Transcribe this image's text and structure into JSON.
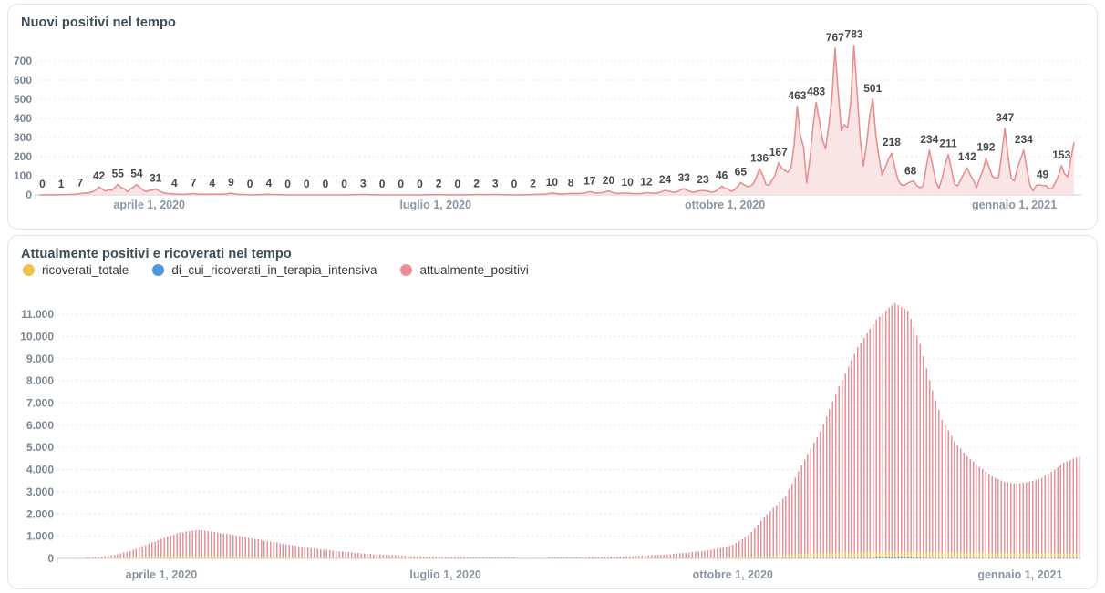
{
  "colors": {
    "card_border": "#e4e4e4",
    "grid": "#e8e8ec",
    "axis": "#c8ccd0",
    "y_tick_text": "#7b8793",
    "x_tick_text": "#8b96a1",
    "data_label_text": "#47484a",
    "title_text": "#3e4c56",
    "legend_text": "#37393b"
  },
  "chart_data": [
    {
      "type": "line",
      "title": "Nuovi positivi nel tempo",
      "series_name": "nuovi_positivi",
      "line_color": "#e88f8f",
      "fill_color": "#f7dede",
      "ylim": [
        0,
        800
      ],
      "y_ticks": [
        0,
        100,
        200,
        300,
        400,
        500,
        600,
        700
      ],
      "grid": true,
      "x_ticks": [
        {
          "label": "aprile 1, 2020",
          "day": 35
        },
        {
          "label": "luglio 1, 2020",
          "day": 126
        },
        {
          "label": "ottobre 1, 2020",
          "day": 218
        },
        {
          "label": "gennaio 1, 2021",
          "day": 310
        }
      ],
      "days_total": 330,
      "labels_first_day": 1,
      "labels_interval_days": 6,
      "labeled_values": [
        0,
        1,
        7,
        42,
        55,
        54,
        31,
        4,
        7,
        4,
        9,
        0,
        4,
        0,
        0,
        0,
        0,
        3,
        0,
        0,
        0,
        2,
        0,
        2,
        3,
        0,
        2,
        10,
        8,
        17,
        20,
        10,
        12,
        24,
        33,
        23,
        46,
        65,
        136,
        167,
        463,
        483,
        767,
        783,
        501,
        218,
        68,
        234,
        211,
        142,
        192,
        347,
        234,
        49,
        153
      ],
      "tail_points": [
        [
          326,
          110
        ],
        [
          327,
          95
        ],
        [
          328,
          190
        ],
        [
          329,
          275
        ]
      ]
    },
    {
      "type": "bar",
      "title": "Attualmente positivi e ricoverati nel tempo",
      "ylim": [
        0,
        11600
      ],
      "y_ticks": [
        "0",
        "1.000",
        "2.000",
        "3.000",
        "4.000",
        "5.000",
        "6.000",
        "7.000",
        "8.000",
        "9.000",
        "10.000",
        "11.000"
      ],
      "grid": true,
      "legend_position": "top",
      "x_ticks": [
        {
          "label": "aprile 1, 2020",
          "day": 35
        },
        {
          "label": "luglio 1, 2020",
          "day": 126
        },
        {
          "label": "ottobre 1, 2020",
          "day": 218
        },
        {
          "label": "gennaio 1, 2021",
          "day": 310
        }
      ],
      "days_total": 330,
      "legend": [
        {
          "name": "ricoverati_totale",
          "color": "#efc24e"
        },
        {
          "name": "di_cui_ricoverati_in_terapia_intensiva",
          "color": "#4e97d8"
        },
        {
          "name": "attualmente_positivi",
          "color": "#ec8e96"
        }
      ],
      "series": [
        {
          "name": "attualmente_positivi",
          "color": "#e59399",
          "envelope": [
            [
              0,
              0
            ],
            [
              5,
              10
            ],
            [
              10,
              25
            ],
            [
              15,
              70
            ],
            [
              20,
              160
            ],
            [
              25,
              330
            ],
            [
              30,
              600
            ],
            [
              35,
              880
            ],
            [
              40,
              1120
            ],
            [
              45,
              1260
            ],
            [
              48,
              1270
            ],
            [
              53,
              1180
            ],
            [
              60,
              1010
            ],
            [
              67,
              830
            ],
            [
              75,
              640
            ],
            [
              83,
              470
            ],
            [
              91,
              330
            ],
            [
              99,
              230
            ],
            [
              107,
              160
            ],
            [
              115,
              110
            ],
            [
              123,
              75
            ],
            [
              132,
              52
            ],
            [
              141,
              38
            ],
            [
              150,
              30
            ],
            [
              158,
              30
            ],
            [
              166,
              40
            ],
            [
              173,
              55
            ],
            [
              181,
              80
            ],
            [
              188,
              115
            ],
            [
              196,
              170
            ],
            [
              202,
              240
            ],
            [
              208,
              330
            ],
            [
              213,
              430
            ],
            [
              218,
              620
            ],
            [
              223,
              1040
            ],
            [
              229,
              2000
            ],
            [
              235,
              2820
            ],
            [
              241,
              4460
            ],
            [
              246,
              5700
            ],
            [
              252,
              7750
            ],
            [
              258,
              9520
            ],
            [
              264,
              10760
            ],
            [
              268,
              11300
            ],
            [
              270,
              11500
            ],
            [
              274,
              11170
            ],
            [
              278,
              9660
            ],
            [
              281,
              8020
            ],
            [
              285,
              6240
            ],
            [
              289,
              5280
            ],
            [
              293,
              4600
            ],
            [
              297,
              4120
            ],
            [
              301,
              3700
            ],
            [
              305,
              3440
            ],
            [
              309,
              3370
            ],
            [
              313,
              3440
            ],
            [
              317,
              3640
            ],
            [
              320,
              3910
            ],
            [
              324,
              4320
            ],
            [
              329,
              4600
            ]
          ]
        },
        {
          "name": "ricoverati_totale",
          "color": "#f1c25c",
          "envelope": [
            [
              0,
              0
            ],
            [
              10,
              5
            ],
            [
              15,
              15
            ],
            [
              20,
              35
            ],
            [
              25,
              60
            ],
            [
              30,
              90
            ],
            [
              35,
              110
            ],
            [
              42,
              125
            ],
            [
              48,
              120
            ],
            [
              55,
              105
            ],
            [
              65,
              85
            ],
            [
              75,
              62
            ],
            [
              85,
              45
            ],
            [
              95,
              32
            ],
            [
              105,
              22
            ],
            [
              115,
              15
            ],
            [
              125,
              10
            ],
            [
              140,
              6
            ],
            [
              155,
              5
            ],
            [
              170,
              6
            ],
            [
              185,
              10
            ],
            [
              195,
              15
            ],
            [
              205,
              25
            ],
            [
              212,
              40
            ],
            [
              218,
              60
            ],
            [
              224,
              90
            ],
            [
              230,
              130
            ],
            [
              236,
              180
            ],
            [
              242,
              225
            ],
            [
              248,
              260
            ],
            [
              254,
              280
            ],
            [
              262,
              295
            ],
            [
              270,
              300
            ],
            [
              278,
              295
            ],
            [
              286,
              285
            ],
            [
              294,
              272
            ],
            [
              302,
              260
            ],
            [
              310,
              248
            ],
            [
              318,
              238
            ],
            [
              329,
              230
            ]
          ]
        },
        {
          "name": "di_cui_ricoverati_in_terapia_intensiva",
          "color": "#4e97d8",
          "envelope": [
            [
              0,
              0
            ],
            [
              15,
              2
            ],
            [
              25,
              5
            ],
            [
              35,
              8
            ],
            [
              45,
              9
            ],
            [
              60,
              7
            ],
            [
              80,
              4
            ],
            [
              100,
              2
            ],
            [
              130,
              1
            ],
            [
              160,
              1
            ],
            [
              190,
              2
            ],
            [
              210,
              4
            ],
            [
              218,
              7
            ],
            [
              228,
              12
            ],
            [
              238,
              20
            ],
            [
              248,
              26
            ],
            [
              258,
              30
            ],
            [
              268,
              32
            ],
            [
              278,
              31
            ],
            [
              290,
              28
            ],
            [
              300,
              26
            ],
            [
              310,
              24
            ],
            [
              329,
              22
            ]
          ]
        }
      ]
    }
  ]
}
